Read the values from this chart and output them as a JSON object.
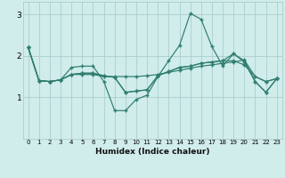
{
  "xlabel": "Humidex (Indice chaleur)",
  "x": [
    0,
    1,
    2,
    3,
    4,
    5,
    6,
    7,
    8,
    9,
    10,
    11,
    12,
    13,
    14,
    15,
    16,
    17,
    18,
    19,
    20,
    21,
    22,
    23
  ],
  "line1": [
    2.2,
    1.4,
    1.38,
    1.42,
    1.72,
    1.75,
    1.75,
    1.38,
    0.68,
    0.68,
    0.95,
    1.05,
    1.5,
    1.88,
    2.25,
    3.02,
    2.88,
    2.22,
    1.75,
    2.05,
    1.85,
    1.38,
    1.12,
    1.45
  ],
  "line2": [
    2.2,
    1.4,
    1.38,
    1.42,
    1.55,
    1.55,
    1.55,
    1.5,
    1.5,
    1.5,
    1.5,
    1.52,
    1.55,
    1.6,
    1.65,
    1.7,
    1.75,
    1.78,
    1.82,
    1.85,
    1.9,
    1.5,
    1.38,
    1.45
  ],
  "line3": [
    2.2,
    1.4,
    1.38,
    1.42,
    1.55,
    1.58,
    1.58,
    1.52,
    1.48,
    1.12,
    1.15,
    1.18,
    1.52,
    1.62,
    1.72,
    1.75,
    1.82,
    1.85,
    1.88,
    2.05,
    1.88,
    1.38,
    1.12,
    1.45
  ],
  "line4": [
    2.2,
    1.4,
    1.38,
    1.42,
    1.55,
    1.58,
    1.58,
    1.52,
    1.48,
    1.12,
    1.15,
    1.18,
    1.52,
    1.62,
    1.72,
    1.75,
    1.82,
    1.85,
    1.88,
    1.88,
    1.78,
    1.5,
    1.38,
    1.45
  ],
  "line_color": "#2e7d6e",
  "bg_color": "#d0eceb",
  "grid_color": "#aacfce",
  "ylim": [
    0.0,
    3.3
  ],
  "yticks": [
    1,
    2,
    3
  ],
  "xticks": [
    0,
    1,
    2,
    3,
    4,
    5,
    6,
    7,
    8,
    9,
    10,
    11,
    12,
    13,
    14,
    15,
    16,
    17,
    18,
    19,
    20,
    21,
    22,
    23
  ]
}
